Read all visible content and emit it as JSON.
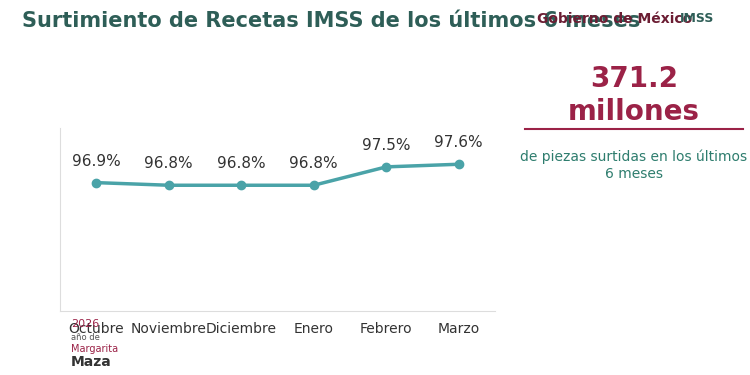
{
  "chart_data": {
    "type": "line",
    "title": "Surtimiento de Recetas IMSS de los últimos 6 meses",
    "categories": [
      "Octubre",
      "Noviembre",
      "Diciembre",
      "Enero",
      "Febrero",
      "Marzo"
    ],
    "values": [
      96.9,
      96.8,
      96.8,
      96.8,
      97.5,
      97.6
    ],
    "value_labels": [
      "96.9%",
      "96.8%",
      "96.8%",
      "96.8%",
      "97.5%",
      "97.6%"
    ],
    "color": "#4aa3a8",
    "marker": "o",
    "line_style": "solid",
    "ylim": [
      92,
      99
    ],
    "yticks": [],
    "tick_labels": "x",
    "data_labels": true,
    "grid": false,
    "annotations": [
      "371.2",
      "millones",
      "de piezas surtidas en los últimos 6 meses",
      "Gobierno de México",
      "IMSS",
      "2026",
      "año de",
      "Margarita",
      "Maza"
    ]
  }
}
